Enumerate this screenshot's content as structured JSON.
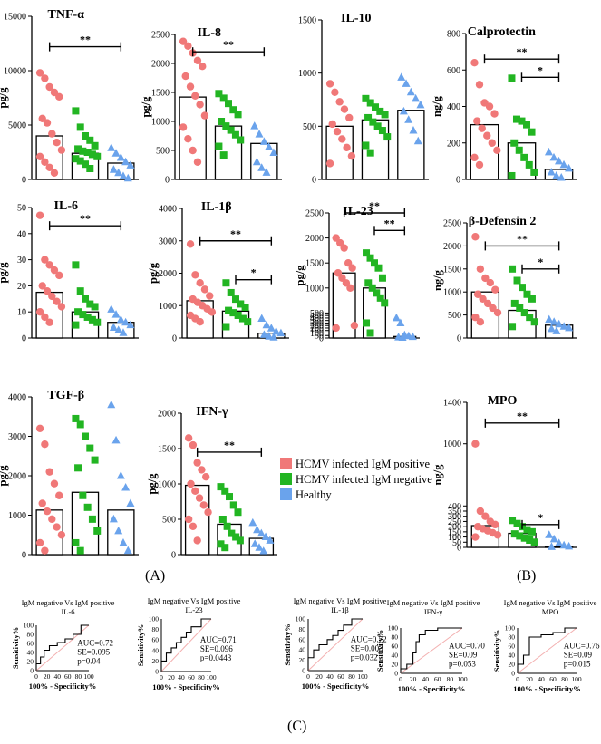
{
  "figure": {
    "panel_labels": [
      "(A)",
      "(B)",
      "(C)"
    ],
    "legend": [
      {
        "label": "HCMV infected IgM positive",
        "color": "#f07878"
      },
      {
        "label": "HCMV infected IgM negative",
        "color": "#22b522"
      },
      {
        "label": "Healthy",
        "color": "#6aa3ec"
      }
    ],
    "colors": {
      "pos": "#f07878",
      "neg": "#22b522",
      "healthy": "#6aa3ec",
      "diag": "#f3b0b0"
    }
  },
  "chart_data": [
    {
      "type": "scatter-bar",
      "title": "TNF-α",
      "ylabel": "pg/g",
      "ylim": [
        0,
        15000
      ],
      "ticks": [
        0,
        5000,
        10000,
        15000
      ],
      "bars": [
        4000,
        2400,
        1500
      ],
      "points": [
        [
          9800,
          9300,
          8500,
          8000,
          7600,
          5600,
          5200,
          4200,
          3400,
          2700,
          2100,
          1600,
          1100,
          600
        ],
        [
          6300,
          4800,
          4000,
          3600,
          3100,
          2800,
          2600,
          2500,
          2300,
          2100,
          1900,
          1700,
          1400,
          1000
        ],
        [
          2900,
          2400,
          2000,
          1600,
          1300,
          900,
          600,
          300,
          100
        ]
      ],
      "sig": [
        {
          "from": 0,
          "to": 2,
          "level": 12200,
          "label": "**"
        }
      ]
    },
    {
      "type": "scatter-bar",
      "title": "IL-8",
      "ylabel": "pg/g",
      "ylim": [
        0,
        2500
      ],
      "ticks": [
        0,
        500,
        1000,
        1500,
        2000,
        2500
      ],
      "bars": [
        1420,
        920,
        620
      ],
      "points": [
        [
          2380,
          2300,
          2180,
          2050,
          1950,
          1780,
          1600,
          1440,
          1290,
          1100,
          900,
          700,
          500,
          300
        ],
        [
          1480,
          1400,
          1310,
          1200,
          1120,
          1000,
          920,
          850,
          770,
          680,
          570,
          420
        ],
        [
          920,
          780,
          650,
          560,
          460,
          300,
          200,
          120
        ]
      ],
      "sig": [
        {
          "from": 0,
          "to": 2,
          "level": 2200,
          "label": "**"
        }
      ]
    },
    {
      "type": "scatter-bar",
      "title": "IL-10",
      "ylabel": "",
      "ylim": [
        0,
        1500
      ],
      "ticks": [
        0,
        500,
        1000,
        1500
      ],
      "bars": [
        500,
        560,
        650
      ],
      "points": [
        [
          900,
          820,
          730,
          660,
          580,
          520,
          450,
          380,
          300,
          220,
          150
        ],
        [
          760,
          720,
          680,
          640,
          610,
          580,
          540,
          500,
          460,
          400,
          320,
          250
        ],
        [
          960,
          900,
          820,
          760,
          700,
          640,
          560,
          460,
          360
        ]
      ],
      "sig": []
    },
    {
      "type": "scatter-bar",
      "title": "Calprotectin",
      "ylabel": "ng/g",
      "ylim": [
        0,
        800
      ],
      "ticks": [
        0,
        200,
        400,
        600,
        800
      ],
      "bars": [
        300,
        200,
        55
      ],
      "points": [
        [
          640,
          520,
          420,
          400,
          360,
          320,
          280,
          240,
          200,
          160,
          120,
          80
        ],
        [
          555,
          330,
          320,
          300,
          260,
          200,
          160,
          120,
          80,
          40,
          20
        ],
        [
          150,
          120,
          100,
          80,
          60,
          40,
          20,
          10
        ]
      ],
      "sig": [
        {
          "from": 0,
          "to": 2,
          "level": 660,
          "label": "**"
        },
        {
          "from": 1,
          "to": 2,
          "level": 560,
          "label": "*"
        }
      ]
    },
    {
      "type": "scatter-bar",
      "title": "IL-6",
      "ylabel": "pg/g",
      "ylim": [
        0,
        50
      ],
      "ticks": [
        0,
        10,
        20,
        30,
        40,
        50
      ],
      "bars": [
        17.5,
        10,
        6
      ],
      "points": [
        [
          47,
          30,
          28,
          26,
          24,
          20,
          18,
          16,
          14,
          12,
          10,
          8,
          6
        ],
        [
          28,
          18,
          15,
          13,
          12,
          10,
          9,
          8,
          7,
          6,
          5
        ],
        [
          11,
          9,
          7,
          6,
          5,
          4,
          3,
          2
        ]
      ],
      "sig": [
        {
          "from": 0,
          "to": 2,
          "level": 43,
          "label": "**"
        }
      ]
    },
    {
      "type": "scatter-bar",
      "title": "IL-1β",
      "ylabel": "pg/g",
      "ylim": [
        0,
        4000
      ],
      "ticks": [
        0,
        1000,
        2000,
        3000,
        4000
      ],
      "bars": [
        1150,
        830,
        150
      ],
      "points": [
        [
          2900,
          1950,
          1700,
          1500,
          1300,
          1200,
          1100,
          1000,
          900,
          800,
          700,
          600,
          500
        ],
        [
          1700,
          1400,
          1200,
          1050,
          950,
          850,
          780,
          700,
          600,
          500,
          350
        ],
        [
          600,
          400,
          300,
          200,
          150,
          100,
          50,
          20
        ]
      ],
      "sig": [
        {
          "from": 0,
          "to": 2,
          "level": 3000,
          "label": "**"
        },
        {
          "from": 1,
          "to": 2,
          "level": 1800,
          "label": "*"
        }
      ]
    },
    {
      "type": "scatter-bar",
      "title": "IL-23",
      "ylabel": "pg/g",
      "ylim": [
        0,
        2500
      ],
      "ticks": [
        0,
        50,
        100,
        150,
        200,
        250,
        300,
        350,
        400,
        450,
        500,
        1000,
        1500,
        2000,
        2500
      ],
      "bars": [
        1300,
        1000,
        30
      ],
      "points": [
        [
          2000,
          1900,
          1800,
          1500,
          1400,
          1300,
          1200,
          1100,
          1000,
          250,
          200
        ],
        [
          1700,
          1600,
          1500,
          1400,
          1200,
          1100,
          1000,
          900,
          800,
          700,
          300,
          100
        ],
        [
          400,
          300,
          60,
          40,
          25,
          15,
          10
        ]
      ],
      "sig": [
        {
          "from": 0,
          "to": 2,
          "level": 2500,
          "label": "**"
        },
        {
          "from": 1,
          "to": 2,
          "level": 2150,
          "label": "**"
        }
      ]
    },
    {
      "type": "scatter-bar",
      "title": "β-Defensin 2",
      "ylabel": "ng/g",
      "ylim": [
        0,
        2500
      ],
      "ticks": [
        0,
        500,
        1000,
        1500,
        2000,
        2500
      ],
      "bars": [
        1000,
        600,
        280
      ],
      "points": [
        [
          2200,
          1500,
          1300,
          1200,
          1050,
          950,
          850,
          750,
          650,
          550,
          450,
          350
        ],
        [
          1500,
          1250,
          1100,
          950,
          850,
          750,
          650,
          550,
          450,
          350,
          250
        ],
        [
          400,
          350,
          300,
          250,
          220,
          200,
          150
        ]
      ],
      "sig": [
        {
          "from": 0,
          "to": 2,
          "level": 2000,
          "label": "**"
        },
        {
          "from": 1,
          "to": 2,
          "level": 1500,
          "label": "*"
        }
      ]
    },
    {
      "type": "scatter-bar",
      "title": "TGF-β",
      "ylabel": "pg/g",
      "ylim": [
        0,
        4000
      ],
      "ticks": [
        0,
        1000,
        2000,
        3000,
        4000
      ],
      "bars": [
        1130,
        1580,
        1130
      ],
      "points": [
        [
          3200,
          2800,
          2100,
          1800,
          1500,
          1300,
          1100,
          900,
          700,
          500,
          300,
          100
        ],
        [
          3450,
          3300,
          3000,
          2700,
          2400,
          2200,
          1500,
          1200,
          900,
          600,
          300,
          100
        ],
        [
          3800,
          2900,
          2000,
          1700,
          1300,
          900,
          600,
          300,
          100
        ]
      ],
      "sig": []
    },
    {
      "type": "scatter-bar",
      "title": "IFN-γ",
      "ylabel": "pg/g",
      "ylim": [
        0,
        2000
      ],
      "ticks": [
        0,
        500,
        1000,
        1500,
        2000
      ],
      "bars": [
        980,
        430,
        230
      ],
      "points": [
        [
          1650,
          1550,
          1300,
          1200,
          1100,
          1000,
          900,
          800,
          700,
          600,
          500,
          400,
          200
        ],
        [
          960,
          900,
          820,
          700,
          600,
          500,
          400,
          300,
          250,
          200,
          150,
          100
        ],
        [
          450,
          350,
          300,
          250,
          200,
          150,
          100,
          50
        ]
      ],
      "sig": [
        {
          "from": 0,
          "to": 2,
          "level": 1450,
          "label": "**"
        }
      ]
    },
    {
      "type": "scatter-bar",
      "title": "MPO",
      "ylabel": "ng/g",
      "ylim": [
        0,
        1400
      ],
      "ticks": [
        0,
        50,
        100,
        150,
        200,
        250,
        300,
        350,
        400,
        1000,
        1400
      ],
      "bars": [
        210,
        135,
        10
      ],
      "points": [
        [
          1000,
          350,
          300,
          250,
          220,
          200,
          180,
          160,
          140,
          120,
          100
        ],
        [
          260,
          230,
          200,
          170,
          150,
          130,
          110,
          90,
          70,
          50
        ],
        [
          120,
          80,
          40,
          20,
          10,
          5
        ]
      ],
      "sig": [
        {
          "from": 0,
          "to": 2,
          "level": 1200,
          "label": "**"
        },
        {
          "from": 1,
          "to": 2,
          "level": 220,
          "label": "*"
        }
      ]
    },
    {
      "type": "roc",
      "title": "IgM negative Vs IgM positive",
      "subtitle": "IL-6",
      "xlabel": "100% - Specificity%",
      "ylabel": "Sensitivity%",
      "ticks": [
        0,
        20,
        40,
        60,
        80,
        100
      ],
      "auc_text": "AUC=0.72",
      "se_text": "SE=0.095",
      "p_text": "p=0.04",
      "x": [
        0,
        0,
        8,
        8,
        15,
        15,
        25,
        25,
        40,
        40,
        55,
        55,
        70,
        70,
        85,
        85,
        100
      ],
      "y": [
        0,
        15,
        15,
        30,
        30,
        45,
        45,
        55,
        55,
        62,
        62,
        70,
        70,
        80,
        80,
        100,
        100
      ]
    },
    {
      "type": "roc",
      "title": "IgM negative Vs IgM positive",
      "subtitle": "IL-23",
      "xlabel": "100% - Specificity%",
      "ylabel": "Sensitivity%",
      "ticks": [
        0,
        20,
        40,
        60,
        80,
        100
      ],
      "auc_text": "AUC=0.71",
      "se_text": "SE=0.096",
      "p_text": "p=0.0443",
      "x": [
        0,
        0,
        10,
        10,
        20,
        20,
        30,
        30,
        40,
        40,
        50,
        50,
        60,
        60,
        80,
        80,
        100
      ],
      "y": [
        0,
        20,
        20,
        35,
        35,
        45,
        45,
        55,
        55,
        65,
        65,
        75,
        75,
        85,
        85,
        100,
        100
      ]
    },
    {
      "type": "roc",
      "title": "IgM negative Vs IgM positive",
      "subtitle": "IL-1β",
      "xlabel": "100% - Specificity%",
      "ylabel": "Sensitivity%",
      "ticks": [
        0,
        20,
        40,
        60,
        80,
        100
      ],
      "auc_text": "AUC=0.72",
      "se_text": "SE=0.003",
      "p_text": "p=0.032",
      "x": [
        0,
        0,
        10,
        10,
        20,
        20,
        35,
        35,
        45,
        45,
        55,
        55,
        65,
        65,
        80,
        80,
        100
      ],
      "y": [
        0,
        25,
        25,
        40,
        40,
        50,
        50,
        60,
        60,
        68,
        68,
        78,
        78,
        88,
        88,
        100,
        100
      ]
    },
    {
      "type": "roc",
      "title": "IgM negative Vs IgM positive",
      "subtitle": "IFN-γ",
      "xlabel": "100% - Specificity%",
      "ylabel": "Sensitivity%",
      "ticks": [
        0,
        20,
        40,
        60,
        80,
        100
      ],
      "auc_text": "AUC=0.70",
      "se_text": "SE=0.09",
      "p_text": "p=0.053",
      "x": [
        0,
        0,
        10,
        10,
        20,
        20,
        25,
        25,
        30,
        30,
        40,
        40,
        60,
        60,
        100
      ],
      "y": [
        0,
        10,
        10,
        20,
        20,
        45,
        45,
        70,
        70,
        85,
        85,
        95,
        95,
        100,
        100
      ]
    },
    {
      "type": "roc",
      "title": "IgM negative Vs IgM positive",
      "subtitle": "MPO",
      "xlabel": "100% - Specificity%",
      "ylabel": "Sensitivity%",
      "ticks": [
        0,
        20,
        40,
        60,
        80,
        100
      ],
      "auc_text": "AUC=0.76",
      "se_text": "SE=0.09",
      "p_text": "p=0.015",
      "x": [
        0,
        0,
        10,
        10,
        20,
        20,
        40,
        40,
        60,
        60,
        80,
        80,
        100
      ],
      "y": [
        0,
        20,
        20,
        40,
        40,
        80,
        80,
        85,
        85,
        90,
        90,
        100,
        100
      ]
    }
  ]
}
